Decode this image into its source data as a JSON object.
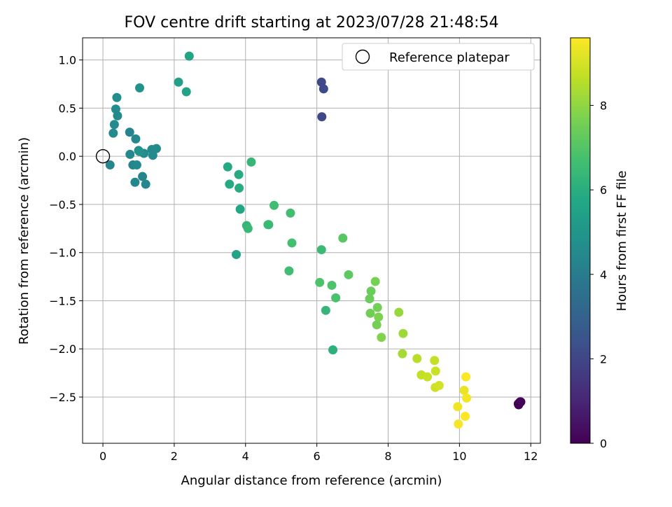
{
  "chart_data": {
    "type": "scatter",
    "title": "FOV centre drift starting at 2023/07/28 21:48:54",
    "xlabel": "Angular distance from reference (arcmin)",
    "ylabel": "Rotation from reference (arcmin)",
    "xlim": [
      -0.57,
      12.27
    ],
    "ylim": [
      -2.98,
      1.23
    ],
    "xticks": [
      0,
      2,
      4,
      6,
      8,
      10,
      12
    ],
    "yticks": [
      -2.5,
      -2.0,
      -1.5,
      -1.0,
      -0.5,
      0.0,
      0.5,
      1.0
    ],
    "xtick_labels": [
      "0",
      "2",
      "4",
      "6",
      "8",
      "10",
      "12"
    ],
    "ytick_labels": [
      "−2.5",
      "−2.0",
      "−1.5",
      "−1.0",
      "−0.5",
      "0.0",
      "0.5",
      "1.0"
    ],
    "grid": true,
    "legend": {
      "label": "Reference platepar",
      "placement": "top-right"
    },
    "reference_point": {
      "x": 0,
      "y": 0
    },
    "colorbar": {
      "label": "Hours from first FF file",
      "colormap": "viridis",
      "range": [
        0,
        9.6
      ],
      "ticks": [
        0,
        2,
        4,
        6,
        8
      ],
      "tick_labels": [
        "0",
        "2",
        "4",
        "6",
        "8"
      ]
    },
    "series": [
      {
        "x": [
          11.65,
          11.68,
          11.7,
          11.66,
          11.72,
          6.13,
          6.19,
          6.14,
          0.2,
          0.29,
          0.32,
          0.36,
          0.39,
          0.41,
          0.75,
          0.76,
          0.84,
          0.9,
          0.92,
          0.95,
          1.0,
          1.03,
          1.11,
          1.15,
          1.2,
          1.37,
          1.4,
          1.5,
          1.02,
          2.12,
          2.34,
          2.42,
          3.5,
          3.55,
          3.74,
          3.81,
          3.82,
          3.85,
          4.03,
          4.07,
          4.16,
          4.63,
          4.65,
          4.8,
          5.22,
          5.26,
          5.3,
          6.08,
          6.13,
          6.25,
          6.42,
          6.45,
          6.53,
          6.73,
          6.89,
          7.48,
          7.5,
          7.52,
          7.64,
          7.68,
          7.7,
          7.73,
          7.81,
          8.3,
          8.4,
          8.42,
          8.81,
          8.93,
          9.1,
          9.3,
          9.32,
          9.33,
          9.43,
          9.95,
          9.97,
          10.13,
          10.16,
          10.18,
          10.2
        ],
        "y": [
          -2.57,
          -2.56,
          -2.55,
          -2.58,
          -2.55,
          0.77,
          0.7,
          0.41,
          -0.09,
          0.24,
          0.33,
          0.49,
          0.61,
          0.42,
          0.25,
          0.02,
          -0.09,
          -0.27,
          0.18,
          -0.09,
          0.06,
          0.71,
          -0.21,
          0.03,
          -0.29,
          0.07,
          0.01,
          0.08,
          0.05,
          0.77,
          0.67,
          1.04,
          -0.11,
          -0.29,
          -1.02,
          -0.19,
          -0.33,
          -0.55,
          -0.72,
          -0.75,
          -0.06,
          -0.71,
          -0.71,
          -0.51,
          -1.19,
          -0.59,
          -0.9,
          -1.31,
          -0.97,
          -1.6,
          -1.34,
          -2.01,
          -1.47,
          -0.85,
          -1.23,
          -1.48,
          -1.63,
          -1.4,
          -1.3,
          -1.75,
          -1.57,
          -1.67,
          -1.88,
          -1.62,
          -2.05,
          -1.84,
          -2.1,
          -2.27,
          -2.29,
          -2.12,
          -2.4,
          -2.23,
          -2.38,
          -2.6,
          -2.78,
          -2.43,
          -2.7,
          -2.29,
          -2.51
        ],
        "hours": [
          0.0,
          0.05,
          0.1,
          0.03,
          0.08,
          2.05,
          2.15,
          2.1,
          4.4,
          4.52,
          4.55,
          4.6,
          4.62,
          4.58,
          4.3,
          4.45,
          4.35,
          4.38,
          4.48,
          4.5,
          4.42,
          4.9,
          4.32,
          4.65,
          4.4,
          4.5,
          4.55,
          4.58,
          4.9,
          5.45,
          5.5,
          5.6,
          5.8,
          5.85,
          5.5,
          5.9,
          5.95,
          5.7,
          6.3,
          6.4,
          6.35,
          6.5,
          6.45,
          6.6,
          6.6,
          6.65,
          6.7,
          6.9,
          6.5,
          6.3,
          6.9,
          6.1,
          6.8,
          7.1,
          7.2,
          7.4,
          7.5,
          7.4,
          7.6,
          7.55,
          7.55,
          7.7,
          7.8,
          8.1,
          8.3,
          8.2,
          8.6,
          8.7,
          8.8,
          8.75,
          8.9,
          8.85,
          8.95,
          9.4,
          9.5,
          9.3,
          9.6,
          9.55,
          9.45
        ]
      }
    ]
  }
}
